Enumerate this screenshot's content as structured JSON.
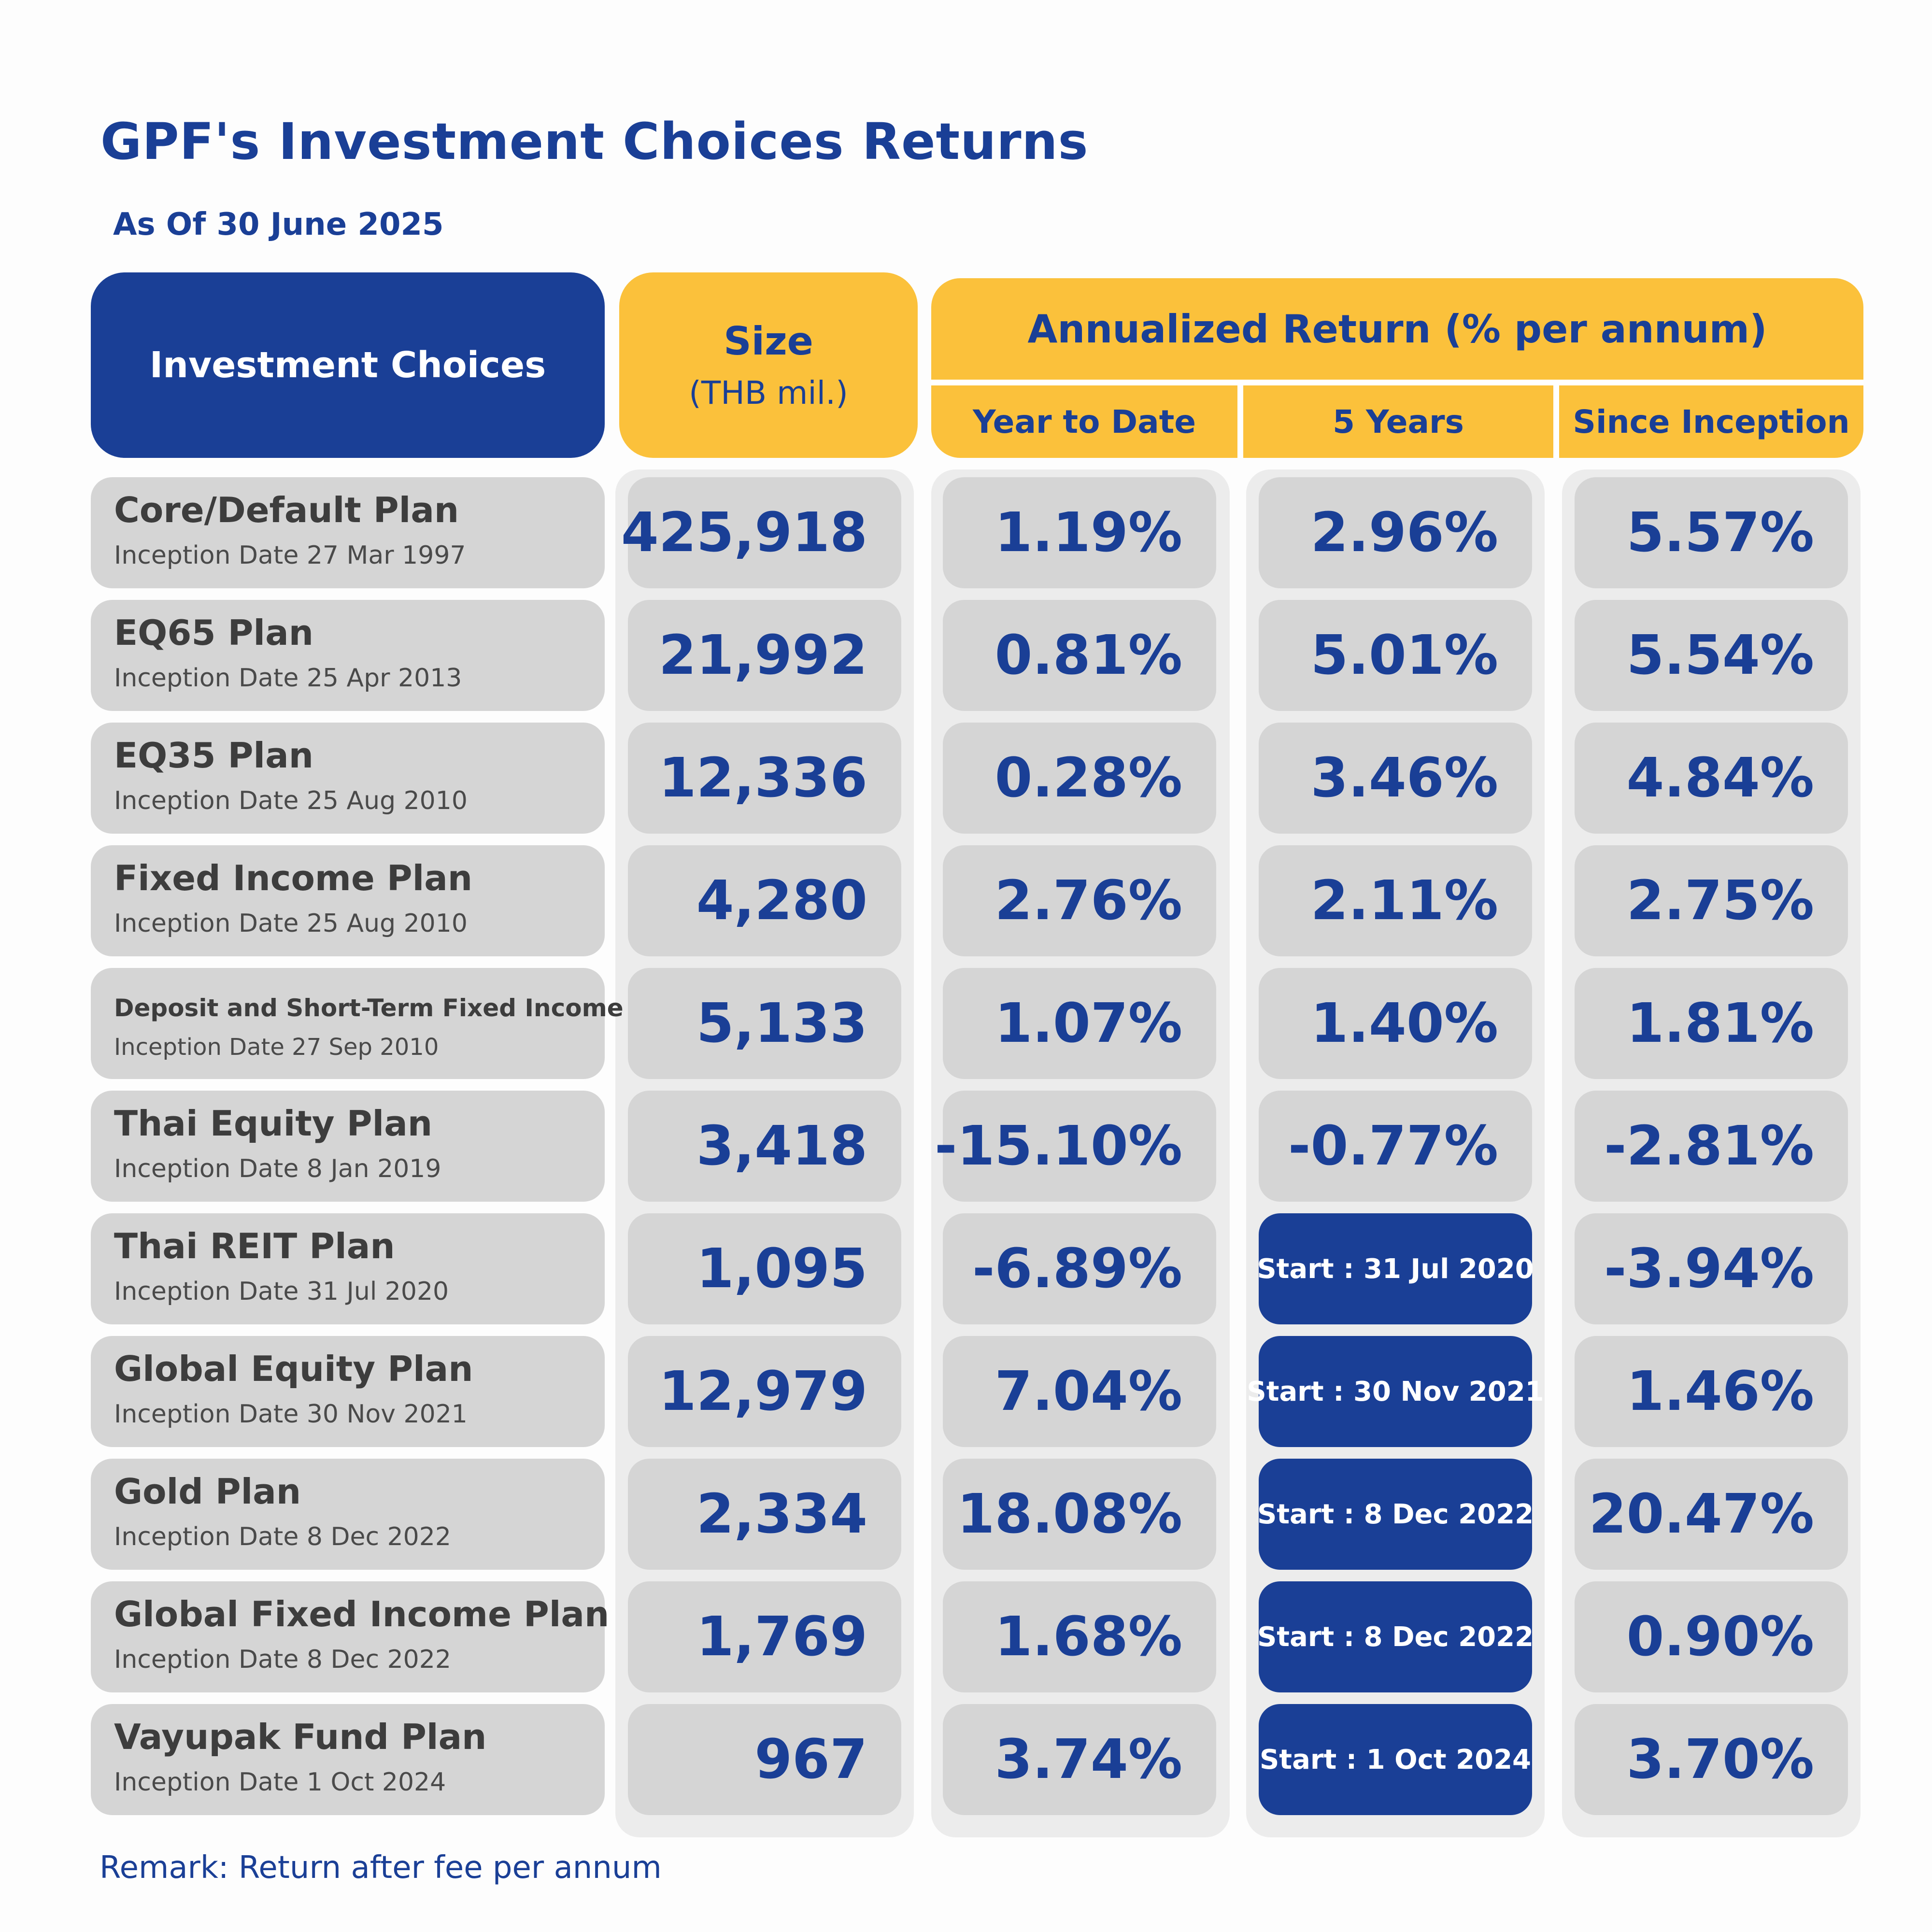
{
  "chart_data": {
    "type": "table",
    "title": "GPF's Investment Choices Returns",
    "subtitle": "As Of 30 June 2025",
    "headers": {
      "choices": "Investment Choices",
      "size_line1": "Size",
      "size_line2": "(THB mil.)",
      "annualized": "Annualized Return (% per annum)",
      "ytd": "Year to Date",
      "five_years": "5 Years",
      "since_inception": "Since Inception"
    },
    "rows": [
      {
        "name": "Core/Default Plan",
        "inception": "Inception Date 27 Mar 1997",
        "size": "425,918",
        "ytd": "1.19%",
        "five_years": "2.96%",
        "since_inception": "5.57%"
      },
      {
        "name": "EQ65 Plan",
        "inception": "Inception Date 25 Apr 2013",
        "size": "21,992",
        "ytd": "0.81%",
        "five_years": "5.01%",
        "since_inception": "5.54%"
      },
      {
        "name": "EQ35 Plan",
        "inception": "Inception Date 25 Aug 2010",
        "size": "12,336",
        "ytd": "0.28%",
        "five_years": "3.46%",
        "since_inception": "4.84%"
      },
      {
        "name": "Fixed Income Plan",
        "inception": "Inception Date 25 Aug 2010",
        "size": "4,280",
        "ytd": "2.76%",
        "five_years": "2.11%",
        "since_inception": "2.75%"
      },
      {
        "name": "Deposit and Short-Term Fixed Income Plan",
        "inception": "Inception Date 27 Sep 2010",
        "size": "5,133",
        "ytd": "1.07%",
        "five_years": "1.40%",
        "since_inception": "1.81%"
      },
      {
        "name": "Thai Equity Plan",
        "inception": "Inception Date 8 Jan 2019",
        "size": "3,418",
        "ytd": "-15.10%",
        "five_years": "-0.77%",
        "since_inception": "-2.81%"
      },
      {
        "name": "Thai REIT Plan",
        "inception": "Inception Date 31 Jul 2020",
        "size": "1,095",
        "ytd": "-6.89%",
        "five_years": "Start : 31 Jul 2020",
        "since_inception": "-3.94%"
      },
      {
        "name": "Global Equity Plan",
        "inception": "Inception Date 30 Nov 2021",
        "size": "12,979",
        "ytd": "7.04%",
        "five_years": "Start : 30 Nov 2021",
        "since_inception": "1.46%"
      },
      {
        "name": "Gold Plan",
        "inception": "Inception Date 8 Dec 2022",
        "size": "2,334",
        "ytd": "18.08%",
        "five_years": "Start : 8 Dec 2022",
        "since_inception": "20.47%"
      },
      {
        "name": "Global Fixed Income Plan",
        "inception": "Inception Date 8 Dec 2022",
        "size": "1,769",
        "ytd": "1.68%",
        "five_years": "Start : 8 Dec 2022",
        "since_inception": "0.90%"
      },
      {
        "name": "Vayupak Fund Plan",
        "inception": "Inception Date 1 Oct 2024",
        "size": "967",
        "ytd": "3.74%",
        "five_years": "Start : 1 Oct 2024",
        "since_inception": "3.70%"
      }
    ],
    "remark": "Remark: Return after fee per annum"
  },
  "colors": {
    "navy": "#1a3f96",
    "yellow": "#fbc13b",
    "cell_grey": "#d5d5d5",
    "column_grey": "#ececec"
  }
}
